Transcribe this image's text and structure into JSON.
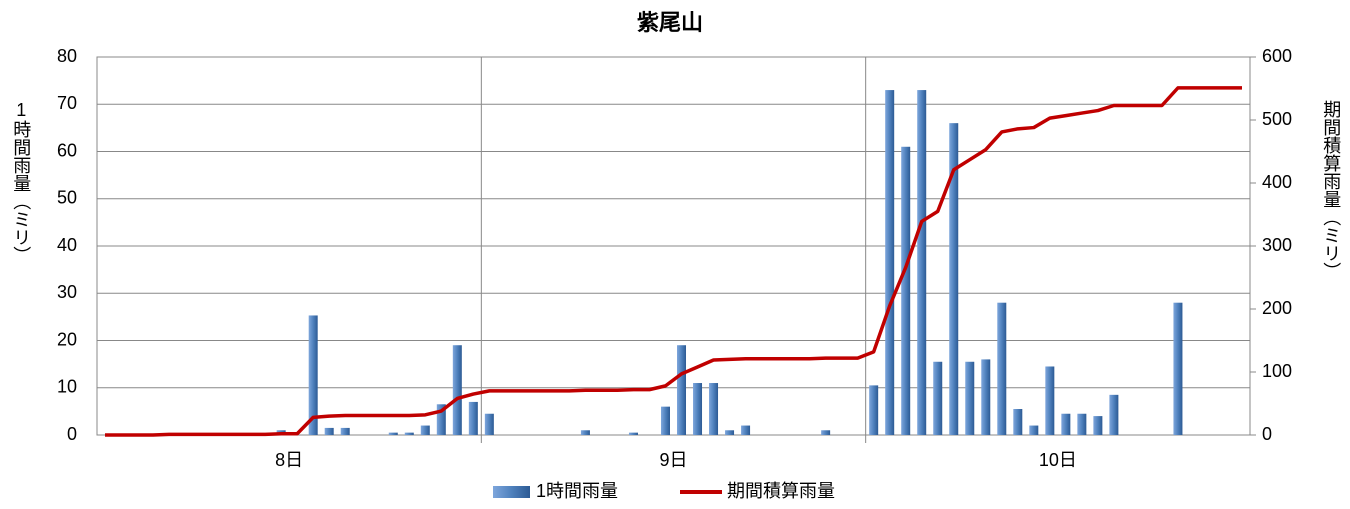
{
  "chart_data": {
    "type": "bar_line",
    "title": "紫尾山",
    "groups": [
      "8日",
      "9日",
      "10日"
    ],
    "ylabel": "1時間雨量（ミリ）",
    "y2label": "期間積算雨量（ミリ）",
    "ylim": [
      0,
      80
    ],
    "yticks": [
      0,
      10,
      20,
      30,
      40,
      50,
      60,
      70,
      80
    ],
    "y2lim": [
      0,
      600
    ],
    "y2ticks": [
      0,
      100,
      200,
      300,
      400,
      500,
      600
    ],
    "grid": true,
    "legend": "bottom",
    "series": [
      {
        "name": "1時間雨量",
        "type": "bar",
        "color": "#4f81bd",
        "values": [
          0,
          0,
          0,
          0,
          0,
          0,
          0,
          0,
          0,
          0,
          0,
          1,
          0,
          25.3,
          1.5,
          1.5,
          0,
          0,
          0.5,
          0.5,
          2,
          6.5,
          19,
          7,
          4.5,
          0,
          0,
          0,
          0,
          0,
          1,
          0,
          0,
          0.5,
          0,
          6,
          19,
          11,
          11,
          1,
          2,
          0,
          0,
          0,
          0,
          1,
          0,
          0,
          10.5,
          73,
          61,
          73,
          15.5,
          66,
          15.5,
          16,
          28,
          5.5,
          2,
          14.5,
          4.5,
          4.5,
          4,
          8.5,
          0,
          0,
          0,
          28,
          0,
          0,
          0,
          0
        ]
      },
      {
        "name": "期間積算雨量",
        "type": "line",
        "axis": "y2",
        "color": "#c00000",
        "values": [
          0,
          0,
          0,
          0,
          1,
          1,
          1,
          1,
          1,
          1,
          1,
          2,
          2,
          28,
          30,
          31,
          31,
          31,
          31,
          31,
          32,
          38,
          58,
          65,
          70,
          70,
          70,
          70,
          70,
          70,
          71,
          71,
          71,
          72,
          72,
          78,
          97,
          108,
          119,
          120,
          121,
          121,
          121,
          121,
          121,
          122,
          122,
          122,
          132,
          205,
          266,
          339,
          355,
          421,
          437,
          453,
          481,
          486,
          488,
          503,
          507,
          511,
          515,
          523,
          523,
          523,
          523,
          551,
          551,
          551,
          551,
          551
        ]
      }
    ]
  }
}
